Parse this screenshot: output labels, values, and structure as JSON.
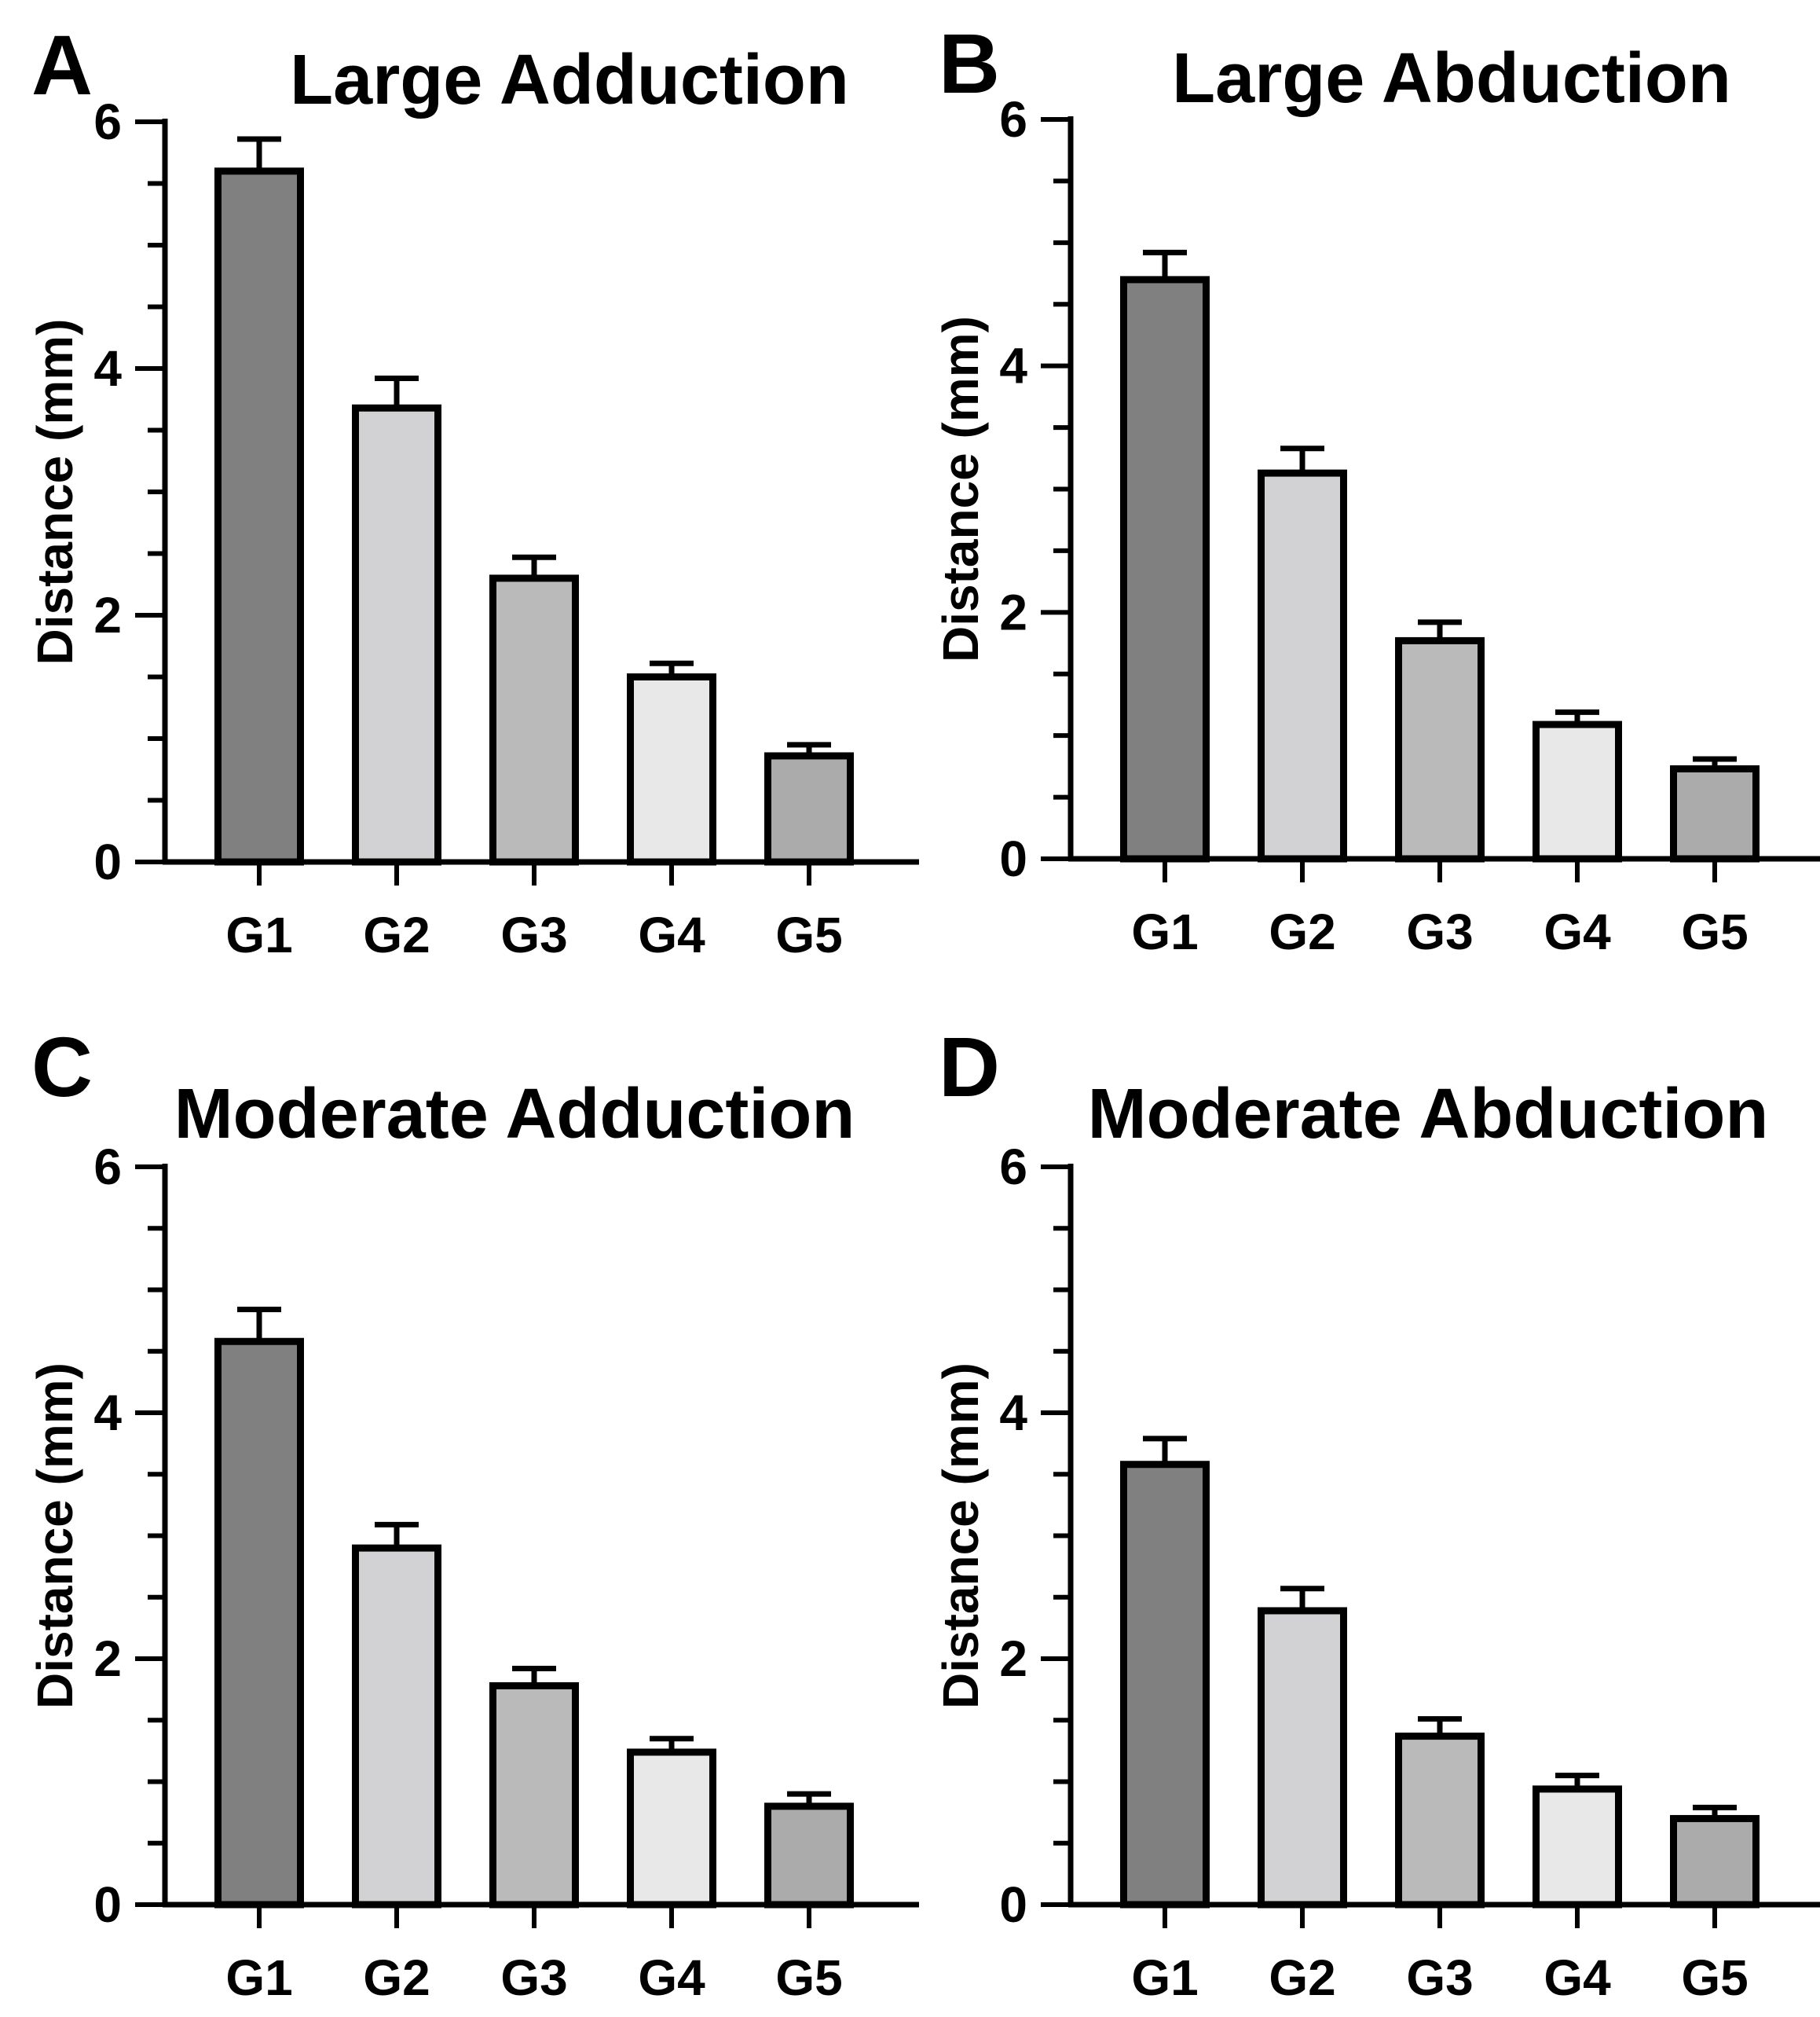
{
  "chart_data": [
    {
      "panel_label": "A",
      "type": "bar",
      "title": "Large Adduction",
      "ylabel": "Distance (mm)",
      "xlabel": "",
      "categories": [
        "G1",
        "G2",
        "G3",
        "G4",
        "G5"
      ],
      "values": [
        5.6,
        3.68,
        2.3,
        1.5,
        0.86
      ],
      "errors": [
        0.26,
        0.24,
        0.17,
        0.11,
        0.09
      ],
      "ylim": [
        0,
        6
      ],
      "yticks": [
        "0",
        "2",
        "4",
        "6"
      ],
      "grid": false,
      "legend": "none"
    },
    {
      "panel_label": "B",
      "type": "bar",
      "title": "Large Abduction",
      "ylabel": "Distance (mm)",
      "xlabel": "",
      "categories": [
        "G1",
        "G2",
        "G3",
        "G4",
        "G5"
      ],
      "values": [
        4.7,
        3.13,
        1.77,
        1.09,
        0.73
      ],
      "errors": [
        0.22,
        0.2,
        0.15,
        0.1,
        0.08
      ],
      "ylim": [
        0,
        6
      ],
      "yticks": [
        "0",
        "2",
        "4",
        "6"
      ],
      "grid": false,
      "legend": "none"
    },
    {
      "panel_label": "C",
      "type": "bar",
      "title": "Moderate Adduction",
      "ylabel": "Distance (mm)",
      "xlabel": "",
      "categories": [
        "G1",
        "G2",
        "G3",
        "G4",
        "G5"
      ],
      "values": [
        4.58,
        2.9,
        1.78,
        1.24,
        0.8
      ],
      "errors": [
        0.26,
        0.19,
        0.14,
        0.11,
        0.1
      ],
      "ylim": [
        0,
        6
      ],
      "yticks": [
        "0",
        "2",
        "4",
        "6"
      ],
      "grid": false,
      "legend": "none"
    },
    {
      "panel_label": "D",
      "type": "bar",
      "title": "Moderate Abduction",
      "ylabel": "Distance (mm)",
      "xlabel": "",
      "categories": [
        "G1",
        "G2",
        "G3",
        "G4",
        "G5"
      ],
      "values": [
        3.58,
        2.39,
        1.37,
        0.94,
        0.7
      ],
      "errors": [
        0.21,
        0.18,
        0.14,
        0.11,
        0.09
      ],
      "ylim": [
        0,
        6
      ],
      "yticks": [
        "0",
        "2",
        "4",
        "6"
      ],
      "grid": false,
      "legend": "none"
    }
  ],
  "bar_colors": [
    "#808080",
    "#d2d2d4",
    "#bababa",
    "#e8e8e8",
    "#ababab"
  ],
  "stroke_color": "#000000"
}
